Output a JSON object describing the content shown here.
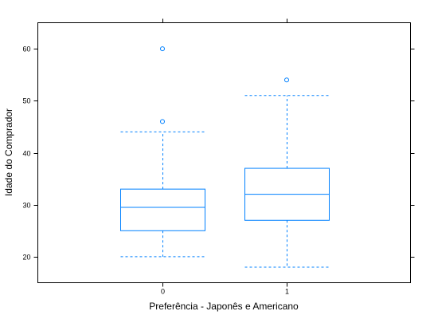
{
  "chart_data": {
    "type": "boxplot",
    "title": "",
    "xlabel": "Preferência - Japonês e Americano",
    "ylabel": "Idade do Comprador",
    "ylim": [
      15,
      65
    ],
    "yticks": [
      20,
      30,
      40,
      50,
      60
    ],
    "categories": [
      "0",
      "1"
    ],
    "boxes": [
      {
        "category": "0",
        "whisker_low": 20,
        "q1": 25,
        "median": 29.5,
        "q3": 33,
        "whisker_high": 44,
        "outliers": [
          46,
          60
        ]
      },
      {
        "category": "1",
        "whisker_low": 18,
        "q1": 27,
        "median": 32,
        "q3": 37,
        "whisker_high": 51,
        "outliers": [
          54
        ]
      }
    ],
    "color": "#0080ff",
    "grid": false,
    "legend": "none"
  }
}
